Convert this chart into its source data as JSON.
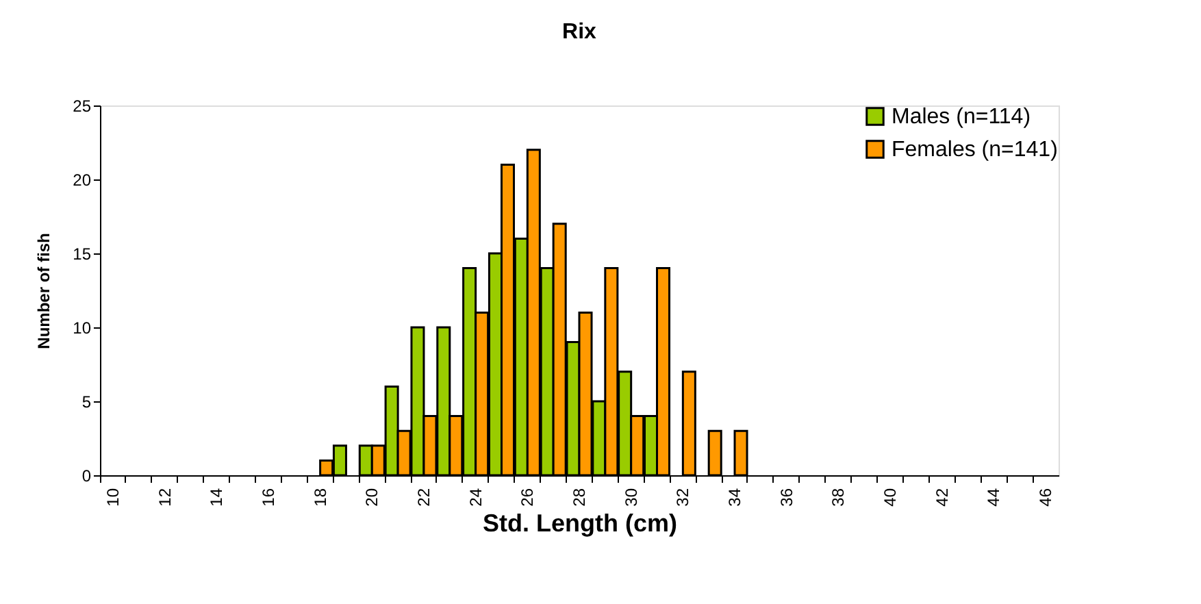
{
  "chart_data": {
    "type": "bar",
    "title": "Rix",
    "xlabel": "Std. Length (cm)",
    "ylabel": "Number of fish",
    "categories": [
      "10",
      null,
      "12",
      null,
      "14",
      null,
      "16",
      null,
      "18",
      null,
      "20",
      null,
      "22",
      null,
      "24",
      null,
      "26",
      null,
      "28",
      null,
      "30",
      null,
      "32",
      null,
      "34",
      null,
      "36",
      null,
      "38",
      null,
      "40",
      null,
      "42",
      null,
      "44",
      null,
      "46"
    ],
    "series": [
      {
        "name": "Males (n=114)",
        "color": "#99cc00",
        "values": [
          0,
          0,
          0,
          0,
          0,
          0,
          0,
          0,
          0,
          2,
          2,
          6,
          10,
          10,
          14,
          15,
          16,
          14,
          9,
          5,
          7,
          4,
          0,
          0,
          0,
          0,
          0,
          0,
          0,
          0,
          0,
          0,
          0,
          0,
          0,
          0,
          0
        ]
      },
      {
        "name": "Females (n=141)",
        "color": "#ff9900",
        "values": [
          0,
          0,
          0,
          0,
          0,
          0,
          0,
          0,
          1,
          0,
          2,
          3,
          4,
          4,
          11,
          21,
          22,
          17,
          11,
          14,
          4,
          14,
          7,
          3,
          3,
          0,
          0,
          0,
          0,
          0,
          0,
          0,
          0,
          0,
          0,
          0,
          0
        ]
      }
    ],
    "ylim": [
      0,
      25
    ],
    "yticks": [
      0,
      5,
      10,
      15,
      20,
      25
    ],
    "grid": false,
    "legend": "top right"
  }
}
